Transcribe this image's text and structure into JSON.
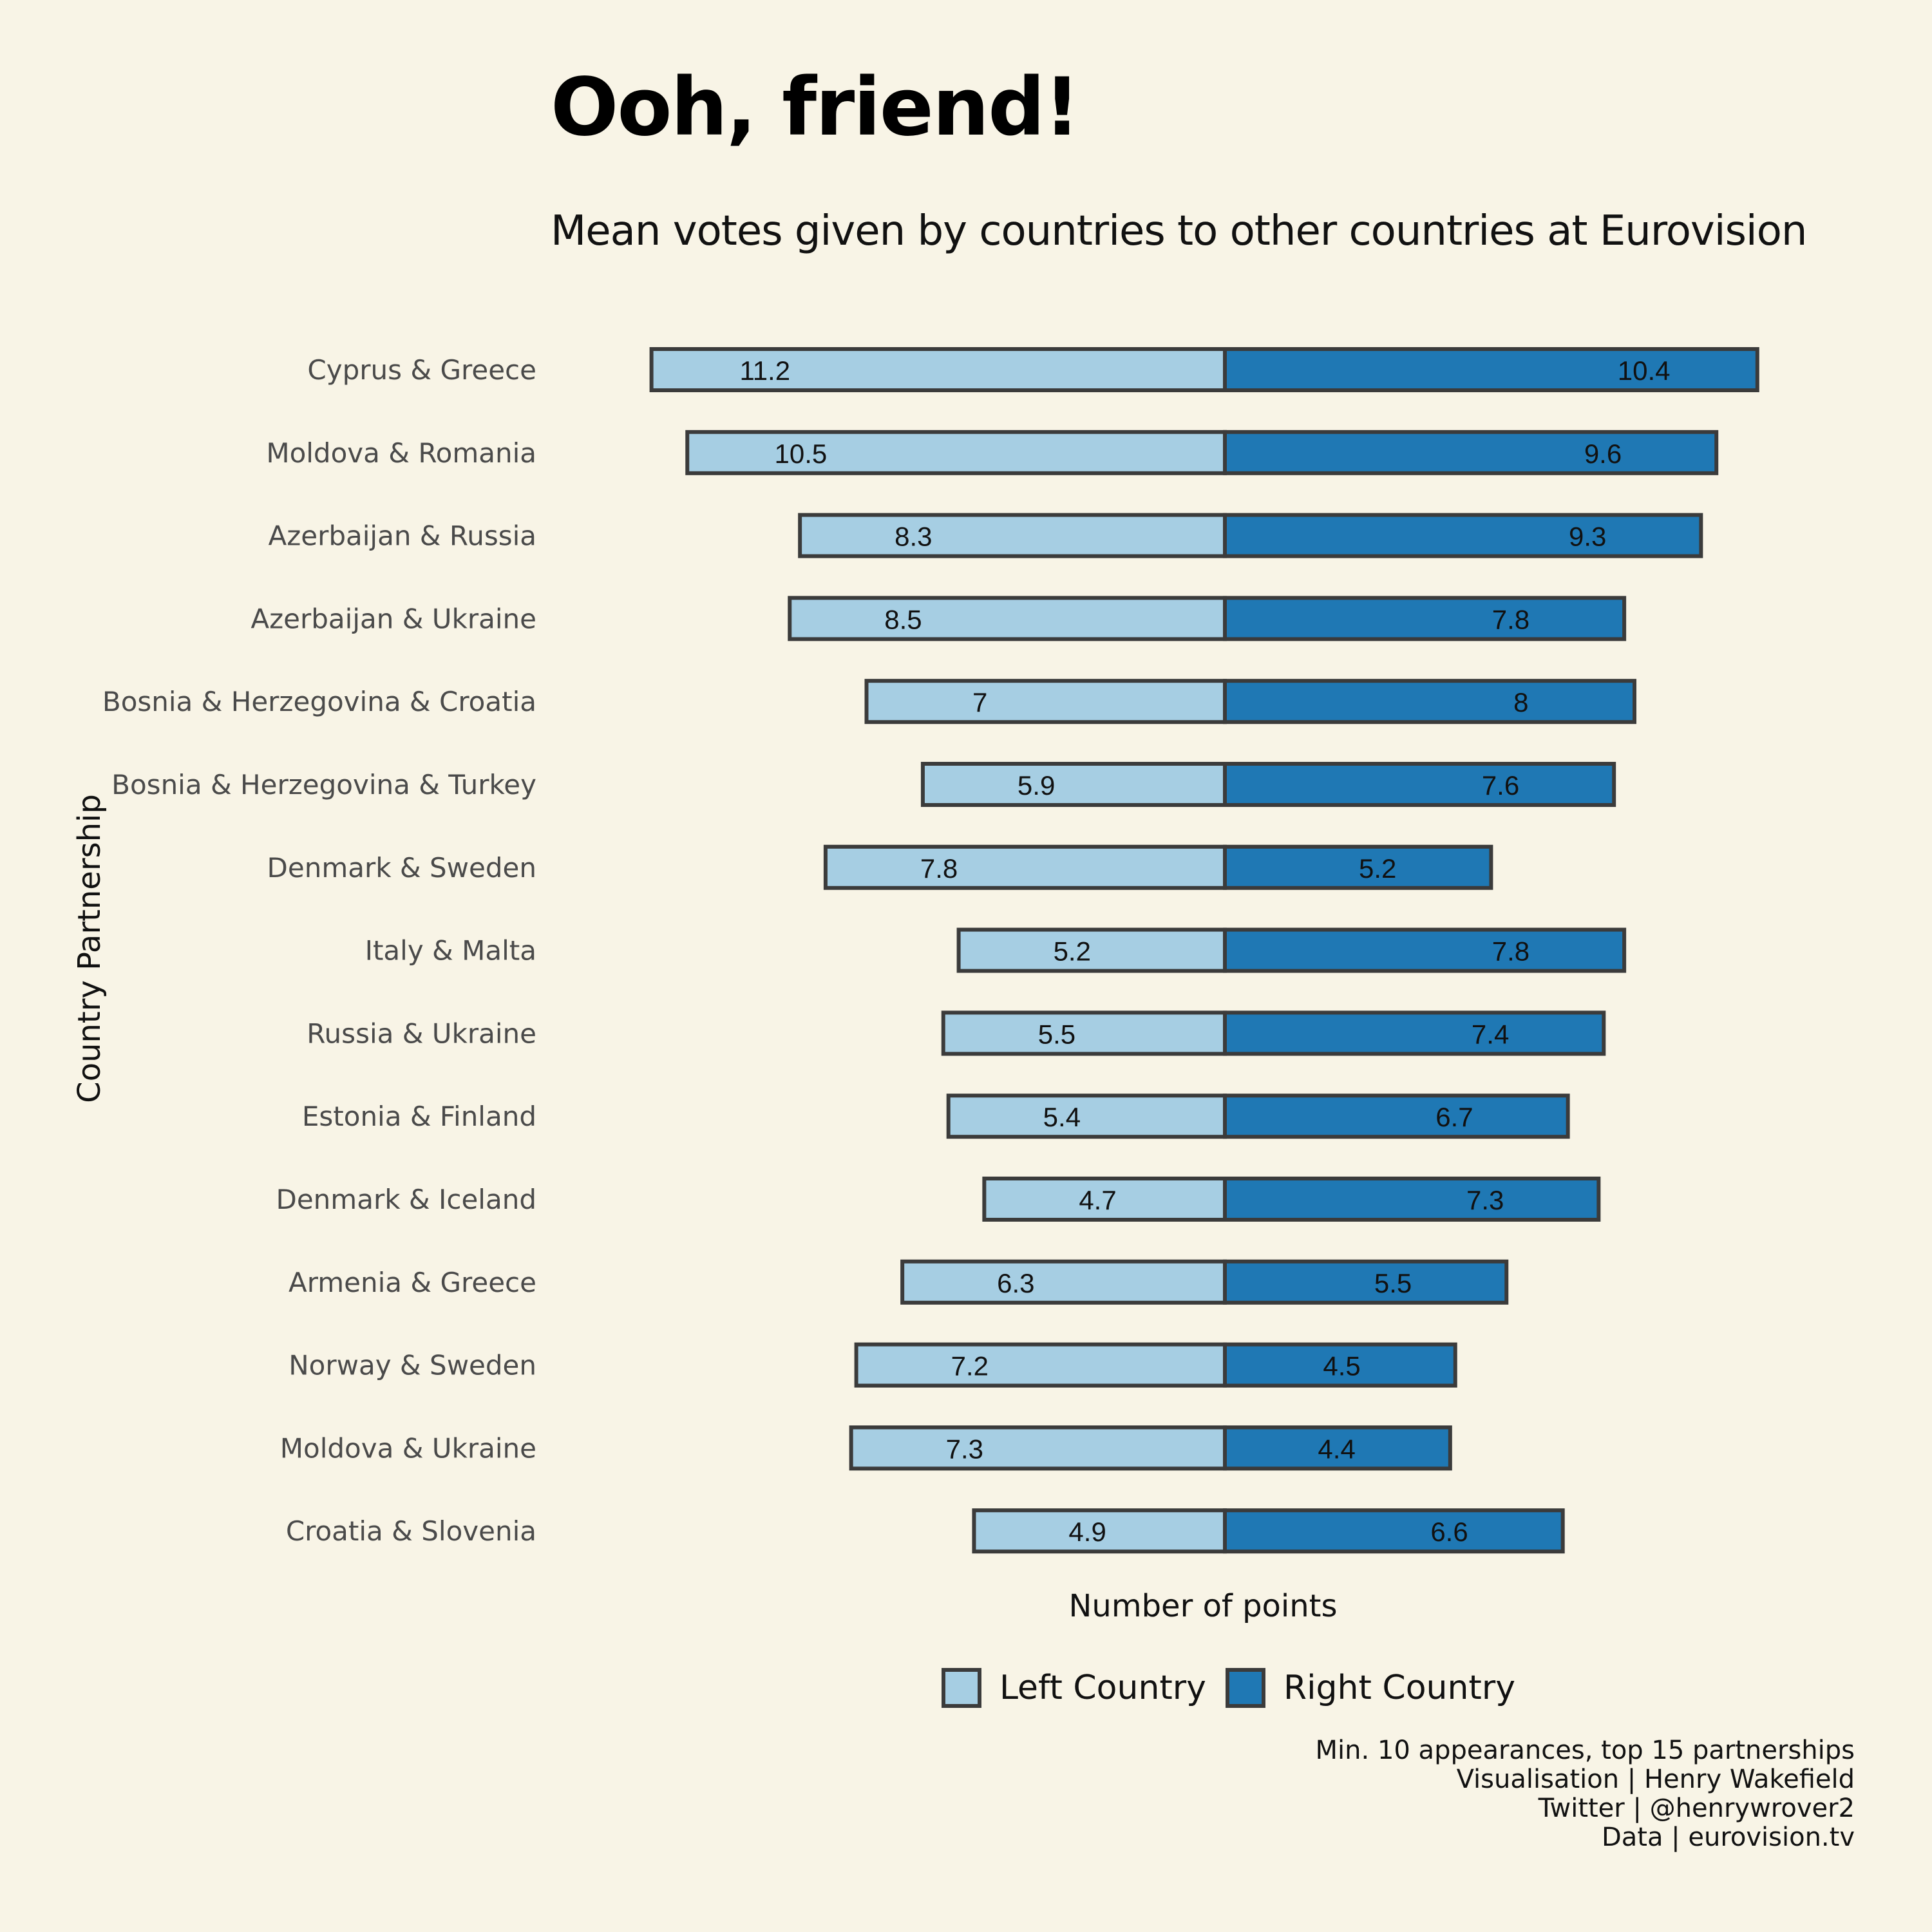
{
  "colors": {
    "left": "#a6cee3",
    "right": "#1f78b4",
    "outline": "#3b3b3b",
    "background": "#f8f4e6"
  },
  "caption": [
    "Min. 10 appearances, top 15 partnerships",
    "Visualisation | Henry Wakefield",
    "Twitter | @henrywrover2",
    "Data | eurovision.tv"
  ],
  "chart_data": {
    "type": "bar",
    "orientation": "horizontal-diverging",
    "title": "Ooh, friend!",
    "subtitle": "Mean votes given by countries to other countries at Eurovision",
    "xlabel": "Number of points",
    "ylabel": "Country Partnership",
    "legend": {
      "position": "bottom",
      "entries": [
        "Left Country",
        "Right Country"
      ]
    },
    "grid": false,
    "categories": [
      "Cyprus & Greece",
      "Moldova & Romania",
      "Azerbaijan & Russia",
      "Azerbaijan & Ukraine",
      "Bosnia & Herzegovina & Croatia",
      "Bosnia & Herzegovina & Turkey",
      "Denmark & Sweden",
      "Italy & Malta",
      "Russia & Ukraine",
      "Estonia & Finland",
      "Denmark & Iceland",
      "Armenia & Greece",
      "Norway & Sweden",
      "Moldova & Ukraine",
      "Croatia & Slovenia"
    ],
    "series": [
      {
        "name": "Left Country",
        "values": [
          11.2,
          10.5,
          8.3,
          8.5,
          7,
          5.9,
          7.8,
          5.2,
          5.5,
          5.4,
          4.7,
          6.3,
          7.2,
          7.3,
          4.9
        ]
      },
      {
        "name": "Right Country",
        "values": [
          10.4,
          9.6,
          9.3,
          7.8,
          8,
          7.6,
          5.2,
          7.8,
          7.4,
          6.7,
          7.3,
          5.5,
          4.5,
          4.4,
          6.6
        ]
      }
    ]
  }
}
